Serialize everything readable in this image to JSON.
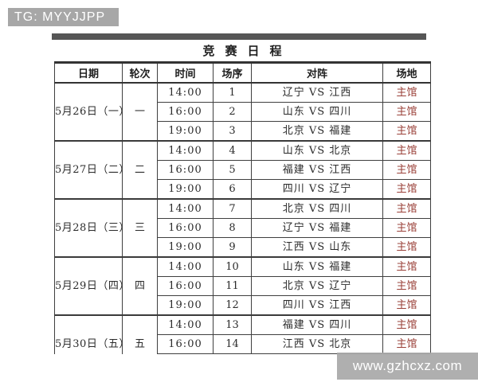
{
  "badge": {
    "text": "TG: MYYJJPP"
  },
  "title": "竞赛日程",
  "table": {
    "columns": [
      "日期",
      "轮次",
      "时间",
      "场序",
      "对阵",
      "场地"
    ],
    "vs_label": "VS",
    "groups": [
      {
        "date": "5月26日（一）",
        "round": "一",
        "matches": [
          {
            "time": "14:00",
            "no": "1",
            "home": "辽宁",
            "away": "江西",
            "venue": "主馆"
          },
          {
            "time": "16:00",
            "no": "2",
            "home": "山东",
            "away": "四川",
            "venue": "主馆"
          },
          {
            "time": "19:00",
            "no": "3",
            "home": "北京",
            "away": "福建",
            "venue": "主馆"
          }
        ]
      },
      {
        "date": "5月27日（二）",
        "round": "二",
        "matches": [
          {
            "time": "14:00",
            "no": "4",
            "home": "山东",
            "away": "北京",
            "venue": "主馆"
          },
          {
            "time": "16:00",
            "no": "5",
            "home": "福建",
            "away": "江西",
            "venue": "主馆"
          },
          {
            "time": "19:00",
            "no": "6",
            "home": "四川",
            "away": "辽宁",
            "venue": "主馆"
          }
        ]
      },
      {
        "date": "5月28日（三）",
        "round": "三",
        "matches": [
          {
            "time": "14:00",
            "no": "7",
            "home": "北京",
            "away": "四川",
            "venue": "主馆"
          },
          {
            "time": "16:00",
            "no": "8",
            "home": "辽宁",
            "away": "福建",
            "venue": "主馆"
          },
          {
            "time": "19:00",
            "no": "9",
            "home": "江西",
            "away": "山东",
            "venue": "主馆"
          }
        ]
      },
      {
        "date": "5月29日（四）",
        "round": "四",
        "matches": [
          {
            "time": "14:00",
            "no": "10",
            "home": "山东",
            "away": "福建",
            "venue": "主馆"
          },
          {
            "time": "16:00",
            "no": "11",
            "home": "北京",
            "away": "辽宁",
            "venue": "主馆"
          },
          {
            "time": "19:00",
            "no": "12",
            "home": "四川",
            "away": "江西",
            "venue": "主馆"
          }
        ]
      },
      {
        "date": "5月30日（五）",
        "round": "五",
        "matches": [
          {
            "time": "14:00",
            "no": "13",
            "home": "福建",
            "away": "四川",
            "venue": "主馆"
          },
          {
            "time": "16:00",
            "no": "14",
            "home": "江西",
            "away": "北京",
            "venue": "主馆"
          }
        ]
      }
    ]
  },
  "watermark": {
    "text": "www.gzhcxz.com"
  },
  "colors": {
    "badge_bg": "#a7a7a7",
    "top_bar": "#565656",
    "table_border": "#3f3f3f",
    "venue_text": "#9a4038",
    "watermark_bg": "#a8a8a8",
    "watermark_text": "#ffffff"
  }
}
